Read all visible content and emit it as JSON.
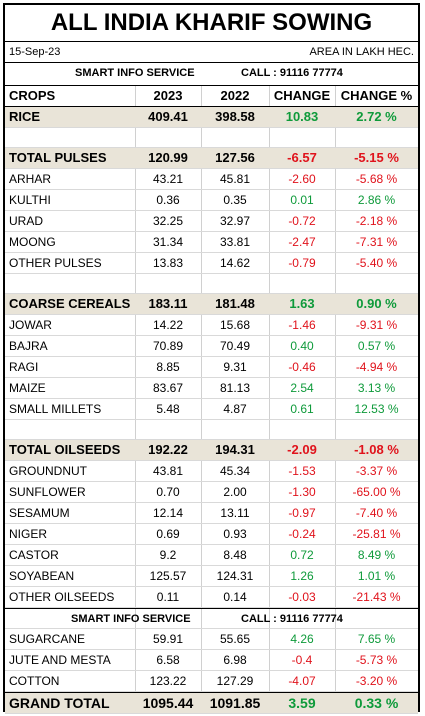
{
  "title": "ALL INDIA KHARIF SOWING",
  "date": "15-Sep-23",
  "area_note": "AREA IN LAKH HEC.",
  "service_name": "SMART INFO SERVICE",
  "service_call": "CALL : 91116 77774",
  "headers": [
    "CROPS",
    "2023",
    "2022",
    "CHANGE",
    "CHANGE %"
  ],
  "colors": {
    "positive": "#0e9a3a",
    "negative": "#e0121b",
    "highlight": "#e9e4d8"
  },
  "rows": [
    {
      "kind": "bold",
      "crop": "RICE",
      "y2023": "409.41",
      "y2022": "398.58",
      "change": "10.83",
      "pct": "2.72 %",
      "sign": "pos"
    },
    {
      "kind": "gap"
    },
    {
      "kind": "bold",
      "crop": "TOTAL PULSES",
      "y2023": "120.99",
      "y2022": "127.56",
      "change": "-6.57",
      "pct": "-5.15 %",
      "sign": "neg"
    },
    {
      "kind": "item",
      "crop": "ARHAR",
      "y2023": "43.21",
      "y2022": "45.81",
      "change": "-2.60",
      "pct": "-5.68 %",
      "sign": "neg"
    },
    {
      "kind": "item",
      "crop": "KULTHI",
      "y2023": "0.36",
      "y2022": "0.35",
      "change": "0.01",
      "pct": "2.86 %",
      "sign": "pos"
    },
    {
      "kind": "item",
      "crop": "URAD",
      "y2023": "32.25",
      "y2022": "32.97",
      "change": "-0.72",
      "pct": "-2.18 %",
      "sign": "neg"
    },
    {
      "kind": "item",
      "crop": "MOONG",
      "y2023": "31.34",
      "y2022": "33.81",
      "change": "-2.47",
      "pct": "-7.31 %",
      "sign": "neg"
    },
    {
      "kind": "item",
      "crop": "OTHER PULSES",
      "y2023": "13.83",
      "y2022": "14.62",
      "change": "-0.79",
      "pct": "-5.40 %",
      "sign": "neg"
    },
    {
      "kind": "gap"
    },
    {
      "kind": "bold",
      "crop": "COARSE CEREALS",
      "y2023": "183.11",
      "y2022": "181.48",
      "change": "1.63",
      "pct": "0.90 %",
      "sign": "pos"
    },
    {
      "kind": "item",
      "crop": "JOWAR",
      "y2023": "14.22",
      "y2022": "15.68",
      "change": "-1.46",
      "pct": "-9.31 %",
      "sign": "neg"
    },
    {
      "kind": "item",
      "crop": "BAJRA",
      "y2023": "70.89",
      "y2022": "70.49",
      "change": "0.40",
      "pct": "0.57 %",
      "sign": "pos"
    },
    {
      "kind": "item",
      "crop": "RAGI",
      "y2023": "8.85",
      "y2022": "9.31",
      "change": "-0.46",
      "pct": "-4.94 %",
      "sign": "neg"
    },
    {
      "kind": "item",
      "crop": "MAIZE",
      "y2023": "83.67",
      "y2022": "81.13",
      "change": "2.54",
      "pct": "3.13 %",
      "sign": "pos"
    },
    {
      "kind": "item",
      "crop": "SMALL MILLETS",
      "y2023": "5.48",
      "y2022": "4.87",
      "change": "0.61",
      "pct": "12.53 %",
      "sign": "pos"
    },
    {
      "kind": "gap"
    },
    {
      "kind": "bold",
      "crop": "TOTAL OILSEEDS",
      "y2023": "192.22",
      "y2022": "194.31",
      "change": "-2.09",
      "pct": "-1.08 %",
      "sign": "neg"
    },
    {
      "kind": "item",
      "crop": "GROUNDNUT",
      "y2023": "43.81",
      "y2022": "45.34",
      "change": "-1.53",
      "pct": "-3.37 %",
      "sign": "neg"
    },
    {
      "kind": "item",
      "crop": "SUNFLOWER",
      "y2023": "0.70",
      "y2022": "2.00",
      "change": "-1.30",
      "pct": "-65.00 %",
      "sign": "neg"
    },
    {
      "kind": "item",
      "crop": "SESAMUM",
      "y2023": "12.14",
      "y2022": "13.11",
      "change": "-0.97",
      "pct": "-7.40 %",
      "sign": "neg"
    },
    {
      "kind": "item",
      "crop": "NIGER",
      "y2023": "0.69",
      "y2022": "0.93",
      "change": "-0.24",
      "pct": "-25.81 %",
      "sign": "neg"
    },
    {
      "kind": "item",
      "crop": "CASTOR",
      "y2023": "9.2",
      "y2022": "8.48",
      "change": "0.72",
      "pct": "8.49 %",
      "sign": "pos"
    },
    {
      "kind": "item",
      "crop": "SOYABEAN",
      "y2023": "125.57",
      "y2022": "124.31",
      "change": "1.26",
      "pct": "1.01 %",
      "sign": "pos"
    },
    {
      "kind": "item",
      "crop": "OTHER OILSEEDS",
      "y2023": "0.11",
      "y2022": "0.14",
      "change": "-0.03",
      "pct": "-21.43 %",
      "sign": "neg"
    },
    {
      "kind": "svc"
    },
    {
      "kind": "item",
      "crop": "SUGARCANE",
      "y2023": "59.91",
      "y2022": "55.65",
      "change": "4.26",
      "pct": "7.65 %",
      "sign": "pos"
    },
    {
      "kind": "item",
      "crop": "JUTE AND MESTA",
      "y2023": "6.58",
      "y2022": "6.98",
      "change": "-0.4",
      "pct": "-5.73 %",
      "sign": "neg"
    },
    {
      "kind": "item",
      "crop": "COTTON",
      "y2023": "123.22",
      "y2022": "127.29",
      "change": "-4.07",
      "pct": "-3.20 %",
      "sign": "neg"
    }
  ],
  "grand_total": {
    "crop": "GRAND TOTAL",
    "y2023": "1095.44",
    "y2022": "1091.85",
    "change": "3.59",
    "pct": "0.33 %",
    "sign": "pos"
  }
}
